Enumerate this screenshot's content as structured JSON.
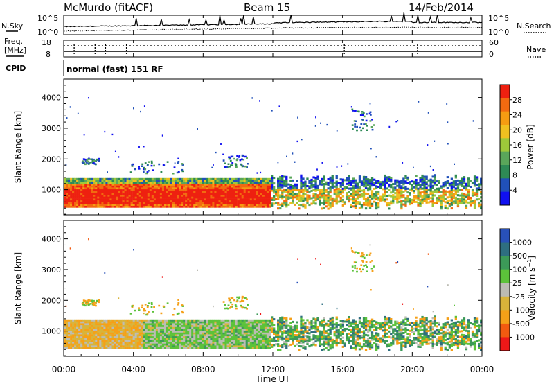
{
  "header": {
    "title": "McMurdo (fitACF)",
    "beam": "Beam 15",
    "date": "14/Feb/2014"
  },
  "top_panels": {
    "nsky_label": "N.Sky",
    "nsky_ticks": [
      "10^5",
      "10^0"
    ],
    "nsearch_label": "N.Search",
    "nsearch_ticks": [
      "10^5",
      "10^0"
    ],
    "freq_label_line1": "Freq.",
    "freq_label_line2": "[MHz]",
    "freq_ticks": [
      "18",
      "8"
    ],
    "nave_label": "Nave",
    "nave_ticks": [
      "60",
      "0"
    ],
    "cpid_label": "CPID",
    "cpid_value": "normal (fast) 151 RF"
  },
  "colors": {
    "power": [
      "#1010f0",
      "#2050b8",
      "#2e8a55",
      "#5aa65a",
      "#9ec83a",
      "#f0c020",
      "#f59c12",
      "#f26a10",
      "#ee2010"
    ],
    "velocity": [
      "#ee1818",
      "#f25a10",
      "#f5a018",
      "#d8b43a",
      "#bcbcb4",
      "#5cc23a",
      "#3c9a58",
      "#2e6e80",
      "#2850b8"
    ]
  },
  "chart_data": [
    {
      "type": "heatmap",
      "panel": "power",
      "xlabel": "Time UT",
      "ylabel": "Slant Range [km]",
      "xlim": [
        0,
        24
      ],
      "ylim": [
        180,
        4600
      ],
      "x_tick_labels": [
        "00:00",
        "04:00",
        "08:00",
        "12:00",
        "16:00",
        "20:00",
        "00:00"
      ],
      "x_tick_hours": [
        0,
        4,
        8,
        12,
        16,
        20,
        24
      ],
      "y_ticks": [
        1000,
        2000,
        3000,
        4000
      ],
      "colorbar_label": "Power [dB]",
      "colorbar_ticks": [
        "28",
        "24",
        "20",
        "16",
        "12",
        "8",
        "4"
      ],
      "colorbar_tick_values": [
        28,
        24,
        20,
        16,
        12,
        8,
        4
      ],
      "colorbar_range": [
        0,
        32
      ],
      "regions": [
        {
          "t0": 0.0,
          "t1": 11.8,
          "r0": 400,
          "r1": 1350,
          "fill": "strong main band"
        },
        {
          "t0": 11.8,
          "t1": 24.0,
          "r0": 350,
          "r1": 1400,
          "fill": "moderate patchy band"
        },
        {
          "t0": 3.8,
          "t1": 6.8,
          "r0": 1500,
          "r1": 1900,
          "fill": "weak far-range echo"
        },
        {
          "t0": 16.5,
          "t1": 17.8,
          "r0": 2900,
          "r1": 3600,
          "fill": "weak far-range echo"
        }
      ]
    },
    {
      "type": "heatmap",
      "panel": "velocity",
      "xlabel": "Time UT",
      "ylabel": "Slant Range [km]",
      "xlim": [
        0,
        24
      ],
      "ylim": [
        180,
        4600
      ],
      "x_tick_labels": [
        "00:00",
        "04:00",
        "08:00",
        "12:00",
        "16:00",
        "20:00",
        "00:00"
      ],
      "x_tick_hours": [
        0,
        4,
        8,
        12,
        16,
        20,
        24
      ],
      "y_ticks": [
        1000,
        2000,
        3000,
        4000
      ],
      "colorbar_label": "Velocity [m s^-1]",
      "colorbar_ticks": [
        "1000",
        "500",
        "100",
        "25",
        "-25",
        "-100",
        "-500",
        "-1000"
      ],
      "regions": [
        {
          "t0": 0.0,
          "t1": 4.5,
          "r0": 400,
          "r1": 1350,
          "fill": "away (orange)"
        },
        {
          "t0": 4.5,
          "t1": 11.8,
          "r0": 400,
          "r1": 1350,
          "fill": "mixed green/grey"
        },
        {
          "t0": 11.8,
          "t1": 24.0,
          "r0": 350,
          "r1": 1400,
          "fill": "mixed green/orange"
        }
      ]
    }
  ]
}
